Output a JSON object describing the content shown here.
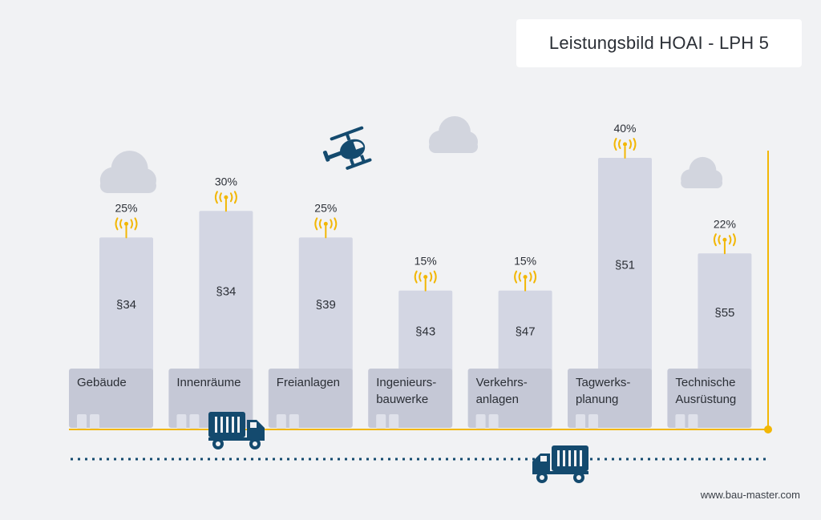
{
  "colors": {
    "background": "#f1f2f4",
    "tower": "#d3d6e3",
    "base": "#c5c8d6",
    "window": "#dfe1ea",
    "accent": "#f2b705",
    "navy": "#144a6e",
    "cloud": "#d2d5de",
    "text": "#2b2f36"
  },
  "icons": {
    "helicopter": "helicopter-icon",
    "truck": "truck-icon",
    "cloud": "cloud-icon",
    "antenna": "antenna-icon"
  },
  "footer": "www.bau-master.com",
  "chart_data": {
    "type": "bar",
    "title": "Leistungsbild HOAI - LPH 5",
    "categories": [
      [
        "Gebäude"
      ],
      [
        "Innenräume"
      ],
      [
        "Freianlagen"
      ],
      [
        "Ingenieurs-",
        "bauwerke"
      ],
      [
        "Verkehrs-",
        "anlagen"
      ],
      [
        "Tagwerks-",
        "planung"
      ],
      [
        "Technische",
        "Ausrüstung"
      ]
    ],
    "paragraphs": [
      "§34",
      "§34",
      "§39",
      "§43",
      "§47",
      "§51",
      "§55"
    ],
    "values": [
      25,
      30,
      25,
      15,
      15,
      40,
      22
    ],
    "value_labels": [
      "25%",
      "30%",
      "25%",
      "15%",
      "15%",
      "40%",
      "22%"
    ],
    "unit": "%",
    "ylim": [
      0,
      40
    ],
    "xlabel": "",
    "ylabel": ""
  }
}
